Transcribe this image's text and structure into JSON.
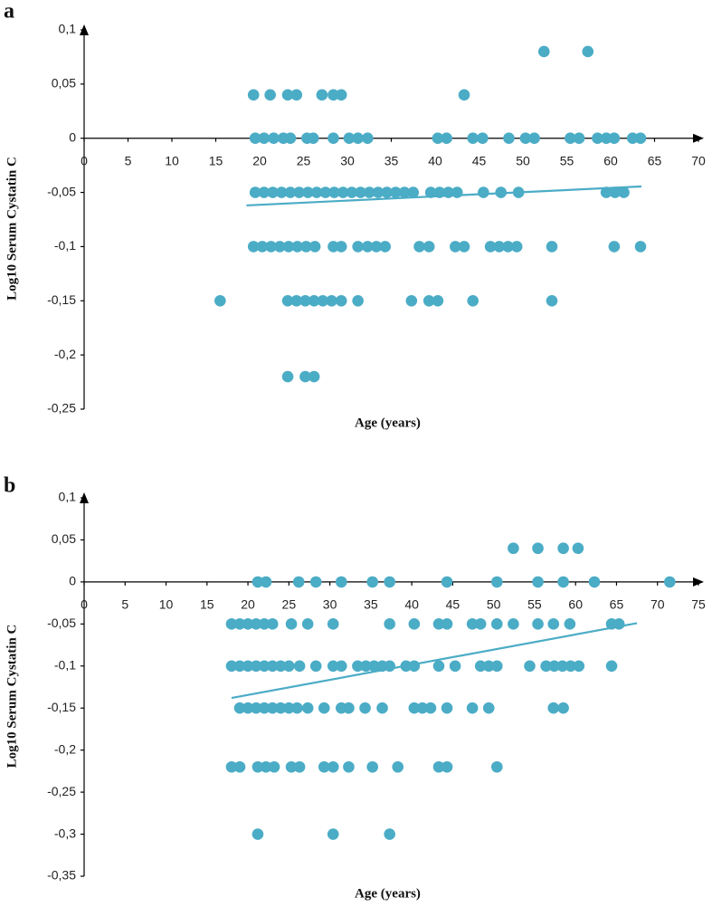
{
  "chart_data": [
    {
      "type": "scatter",
      "panel": "a",
      "xlabel": "Age (years)",
      "ylabel": "Log10 Serum Cystatin C",
      "xlim": [
        0,
        70
      ],
      "xticks": [
        0,
        5,
        10,
        15,
        20,
        25,
        30,
        35,
        40,
        45,
        50,
        55,
        60,
        65,
        70
      ],
      "ylim": [
        -0.25,
        0.1
      ],
      "yticks": [
        {
          "value": 0.1,
          "label": "0,1"
        },
        {
          "value": 0.05,
          "label": "0,05"
        },
        0,
        {
          "value": -0.05,
          "label": "-0,05"
        },
        {
          "value": -0.1,
          "label": "-0,1"
        },
        {
          "value": -0.15,
          "label": "-0,15"
        },
        {
          "value": -0.2,
          "label": "-0,2"
        },
        {
          "value": -0.25,
          "label": "-0,25"
        }
      ],
      "series": [
        {
          "color": "#4bacc6",
          "x": [
            52.4,
            57.4,
            19.3,
            21.2,
            23.2,
            24.2,
            27.1,
            28.4,
            29.3,
            43.3,
            19.5,
            20.5,
            21.6,
            22.7,
            23.5,
            25.4,
            26.1,
            28.4,
            30.2,
            31.2,
            32.3,
            40.3,
            41.3,
            44.3,
            45.4,
            48.4,
            50.3,
            51.3,
            55.4,
            56.4,
            58.5,
            59.5,
            60.4,
            62.5,
            63.4,
            19.5,
            20.5,
            21.5,
            22.5,
            23.5,
            24.5,
            25.5,
            26.5,
            27.5,
            28.5,
            29.5,
            30.5,
            31.5,
            32.5,
            33.5,
            34.5,
            35.5,
            36.5,
            37.5,
            39.5,
            40.5,
            41.5,
            42.5,
            45.5,
            47.5,
            49.5,
            59.5,
            60.5,
            61.5,
            19.3,
            20.3,
            21.3,
            22.3,
            23.3,
            24.3,
            25.3,
            26.3,
            28.4,
            29.3,
            31.2,
            32.3,
            33.3,
            34.3,
            38.2,
            39.3,
            42.3,
            43.3,
            46.3,
            47.3,
            48.3,
            49.3,
            53.3,
            60.4,
            63.4,
            15.5,
            23.2,
            24.2,
            25.2,
            26.2,
            27.2,
            28.2,
            29.3,
            31.2,
            37.3,
            39.3,
            40.3,
            44.3,
            53.3,
            23.2,
            25.2,
            26.2
          ],
          "values": [
            0.08,
            0.08,
            0.04,
            0.04,
            0.04,
            0.04,
            0.04,
            0.04,
            0.04,
            0.04,
            0,
            0,
            0,
            0,
            0,
            0,
            0,
            0,
            0,
            0,
            0,
            0,
            0,
            0,
            0,
            0,
            0,
            0,
            0,
            0,
            0,
            0,
            0,
            0,
            0,
            -0.05,
            -0.05,
            -0.05,
            -0.05,
            -0.05,
            -0.05,
            -0.05,
            -0.05,
            -0.05,
            -0.05,
            -0.05,
            -0.05,
            -0.05,
            -0.05,
            -0.05,
            -0.05,
            -0.05,
            -0.05,
            -0.05,
            -0.05,
            -0.05,
            -0.05,
            -0.05,
            -0.05,
            -0.05,
            -0.05,
            -0.05,
            -0.05,
            -0.05,
            -0.1,
            -0.1,
            -0.1,
            -0.1,
            -0.1,
            -0.1,
            -0.1,
            -0.1,
            -0.1,
            -0.1,
            -0.1,
            -0.1,
            -0.1,
            -0.1,
            -0.1,
            -0.1,
            -0.1,
            -0.1,
            -0.1,
            -0.1,
            -0.1,
            -0.1,
            -0.1,
            -0.1,
            -0.1,
            -0.15,
            -0.15,
            -0.15,
            -0.15,
            -0.15,
            -0.15,
            -0.15,
            -0.15,
            -0.15,
            -0.15,
            -0.15,
            -0.15,
            -0.15,
            -0.15,
            -0.22,
            -0.22,
            -0.22
          ]
        }
      ],
      "trend": {
        "color": "#4bacc6",
        "x": [
          18.5,
          63.5
        ],
        "values": [
          -0.062,
          -0.0445
        ]
      }
    },
    {
      "type": "scatter",
      "panel": "b",
      "xlabel": "Age (years)",
      "ylabel": "Log10 Serum Cystatin C",
      "xlim": [
        0,
        75
      ],
      "xticks": [
        0,
        5,
        10,
        15,
        20,
        25,
        30,
        35,
        40,
        45,
        50,
        55,
        60,
        65,
        70,
        75
      ],
      "ylim": [
        -0.35,
        0.1
      ],
      "yticks": [
        {
          "value": 0.1,
          "label": "0,1"
        },
        {
          "value": 0.05,
          "label": "0,05"
        },
        0,
        {
          "value": -0.05,
          "label": "-0,05"
        },
        {
          "value": -0.1,
          "label": "-0,1"
        },
        {
          "value": -0.15,
          "label": "-0,15"
        },
        {
          "value": -0.2,
          "label": "-0,2"
        },
        {
          "value": -0.25,
          "label": "-0,25"
        },
        {
          "value": -0.3,
          "label": "-0,3"
        },
        {
          "value": -0.35,
          "label": "-0,35"
        }
      ],
      "series": [
        {
          "color": "#4bacc6",
          "x": [
            52.4,
            55.4,
            58.5,
            60.3,
            21.2,
            22.2,
            26.2,
            28.3,
            31.4,
            35.2,
            37.3,
            44.3,
            50.4,
            55.4,
            58.5,
            62.3,
            71.5,
            18,
            19,
            20,
            21,
            22,
            23,
            25.3,
            27.3,
            30.4,
            37.3,
            40.3,
            43.3,
            44.3,
            47.4,
            48.4,
            50.4,
            52.4,
            55.4,
            57.3,
            59.3,
            64.4,
            65.3,
            18,
            19,
            20,
            21,
            22,
            23,
            24,
            25,
            26.3,
            28.3,
            30.4,
            31.4,
            33.4,
            34.4,
            35.4,
            36.4,
            37.3,
            39.3,
            40.3,
            43.3,
            45.3,
            48.4,
            49.4,
            50.4,
            54.4,
            56.4,
            57.4,
            58.4,
            59.4,
            60.4,
            64.4,
            19,
            20,
            21,
            22,
            23,
            24,
            25,
            26,
            27.3,
            29.3,
            31.4,
            32.3,
            34.3,
            36.4,
            40.3,
            41.3,
            42.3,
            44.3,
            47.4,
            49.4,
            57.3,
            58.5,
            18,
            19,
            21.2,
            22.2,
            23.2,
            25.3,
            26.3,
            29.3,
            30.4,
            32.3,
            35.2,
            38.3,
            43.3,
            44.3,
            50.4,
            21.2,
            30.4,
            37.3
          ],
          "values": [
            0.04,
            0.04,
            0.04,
            0.04,
            0,
            0,
            0,
            0,
            0,
            0,
            0,
            0,
            0,
            0,
            0,
            0,
            0,
            -0.05,
            -0.05,
            -0.05,
            -0.05,
            -0.05,
            -0.05,
            -0.05,
            -0.05,
            -0.05,
            -0.05,
            -0.05,
            -0.05,
            -0.05,
            -0.05,
            -0.05,
            -0.05,
            -0.05,
            -0.05,
            -0.05,
            -0.05,
            -0.05,
            -0.05,
            -0.1,
            -0.1,
            -0.1,
            -0.1,
            -0.1,
            -0.1,
            -0.1,
            -0.1,
            -0.1,
            -0.1,
            -0.1,
            -0.1,
            -0.1,
            -0.1,
            -0.1,
            -0.1,
            -0.1,
            -0.1,
            -0.1,
            -0.1,
            -0.1,
            -0.1,
            -0.1,
            -0.1,
            -0.1,
            -0.1,
            -0.1,
            -0.1,
            -0.1,
            -0.1,
            -0.1,
            -0.15,
            -0.15,
            -0.15,
            -0.15,
            -0.15,
            -0.15,
            -0.15,
            -0.15,
            -0.15,
            -0.15,
            -0.15,
            -0.15,
            -0.15,
            -0.15,
            -0.15,
            -0.15,
            -0.15,
            -0.15,
            -0.15,
            -0.15,
            -0.15,
            -0.15,
            -0.22,
            -0.22,
            -0.22,
            -0.22,
            -0.22,
            -0.22,
            -0.22,
            -0.22,
            -0.22,
            -0.22,
            -0.22,
            -0.22,
            -0.22,
            -0.22,
            -0.22,
            -0.3,
            -0.3,
            -0.3
          ]
        }
      ],
      "trend": {
        "color": "#4bacc6",
        "x": [
          18,
          67.5
        ],
        "values": [
          -0.138,
          -0.049
        ]
      }
    }
  ]
}
